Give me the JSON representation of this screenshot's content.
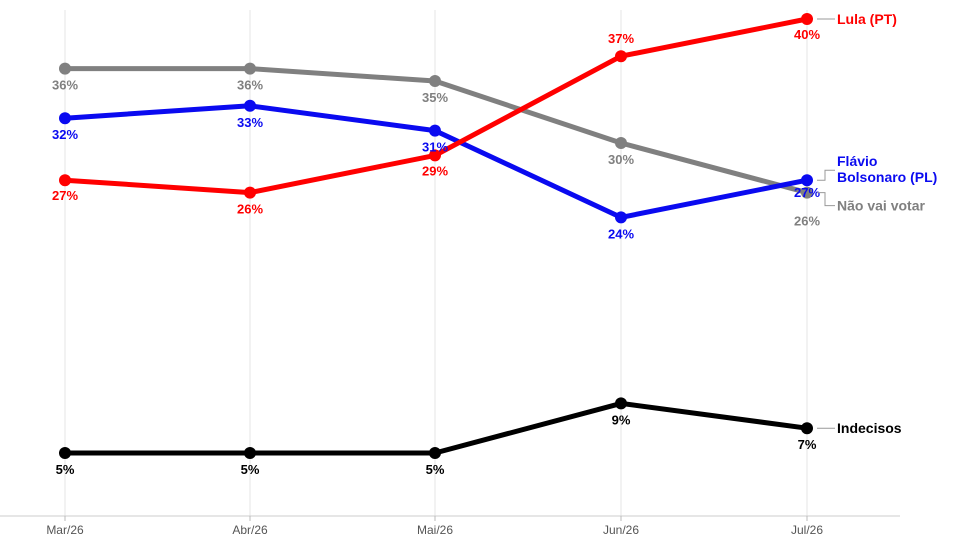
{
  "chart_data": {
    "type": "line",
    "categories": [
      "Mar/26",
      "Abr/26",
      "Mai/26",
      "Jun/26",
      "Jul/26"
    ],
    "ylim": [
      0,
      42
    ],
    "grid": "vertical",
    "series": [
      {
        "name": "Lula (PT)",
        "color": "#ff0000",
        "values": [
          27,
          26,
          29,
          37,
          40
        ],
        "labels": [
          "27%",
          "26%",
          "29%",
          "37%",
          "40%"
        ]
      },
      {
        "name": "Flávio Bolsonaro (PL)",
        "color": "#0a0af0",
        "values": [
          32,
          33,
          31,
          24,
          27
        ],
        "labels": [
          "32%",
          "33%",
          "31%",
          "24%",
          "27%"
        ]
      },
      {
        "name": "Não vai votar",
        "color": "#808080",
        "values": [
          36,
          36,
          35,
          30,
          26
        ],
        "labels": [
          "36%",
          "36%",
          "35%",
          "30%",
          "26%"
        ]
      },
      {
        "name": "Indecisos",
        "color": "#000000",
        "values": [
          5,
          5,
          5,
          9,
          7
        ],
        "labels": [
          "5%",
          "5%",
          "5%",
          "9%",
          "7%"
        ]
      }
    ]
  }
}
